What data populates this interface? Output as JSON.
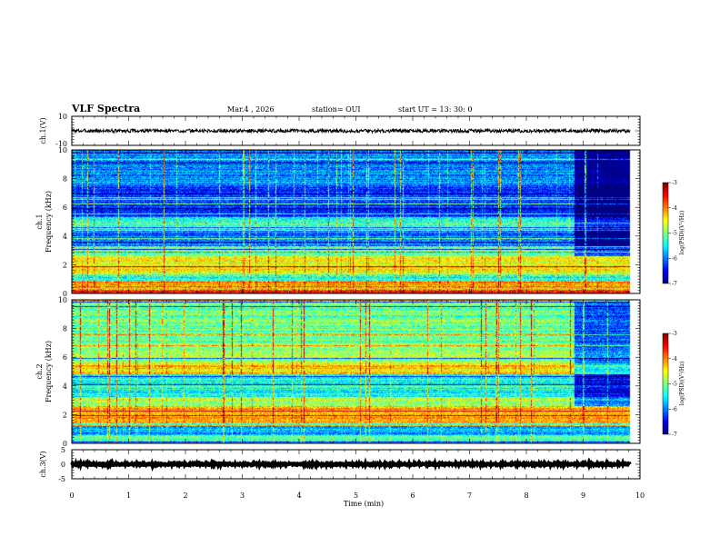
{
  "header": {
    "title": "VLF Spectra",
    "date": "Mar.4 , 2026",
    "station": "station= OUI",
    "start": "start UT = 13: 30: 0"
  },
  "chart_data": [
    {
      "type": "line",
      "name": "ch1-voltage",
      "ylabel": "ch.1(V)",
      "ylim": [
        -10,
        10
      ],
      "yticks": [
        "10",
        "-10"
      ],
      "description_values": {
        "x": [
          0,
          9.83
        ],
        "y_center": 0,
        "y_noise_amplitude": 1.2
      }
    },
    {
      "type": "heatmap",
      "name": "ch1-spectrogram",
      "ylabel_top": "ch.1",
      "ylabel": "Frequency (kHz)",
      "ylim": [
        0,
        10
      ],
      "yticks": [
        "0",
        "2",
        "4",
        "6",
        "8",
        "10"
      ],
      "xlim": [
        0,
        10
      ],
      "colorbar": {
        "label": "log(PSD)(V²/Hz)",
        "ticks": [
          "-3",
          "-4",
          "-5",
          "-6",
          "-7"
        ],
        "range": [
          -7,
          -3
        ]
      },
      "seed": 7,
      "regime_change_min": 8.85,
      "bands_khz": [
        {
          "f0": 0,
          "f1": 0.25,
          "level": -3.6
        },
        {
          "f0": 0.25,
          "f1": 0.9,
          "level": -4.1
        },
        {
          "f0": 0.9,
          "f1": 1.3,
          "level": -5.4
        },
        {
          "f0": 1.3,
          "f1": 2.6,
          "level": -4.5
        },
        {
          "f0": 2.6,
          "f1": 3.3,
          "level": -5.2
        },
        {
          "f0": 3.3,
          "f1": 4.6,
          "level": -6.0
        },
        {
          "f0": 4.6,
          "f1": 5.3,
          "level": -5.3
        },
        {
          "f0": 5.3,
          "f1": 7.5,
          "level": -6.3
        },
        {
          "f0": 7.5,
          "f1": 10.0,
          "level": -6.0
        }
      ]
    },
    {
      "type": "heatmap",
      "name": "ch2-spectrogram",
      "ylabel_top": "ch.2",
      "ylabel": "Frequency (kHz)",
      "ylim": [
        0,
        10
      ],
      "yticks": [
        "0",
        "2",
        "4",
        "6",
        "8",
        "10"
      ],
      "xlim": [
        0,
        10
      ],
      "colorbar": {
        "label": "log(PSD)(V²/Hz)",
        "ticks": [
          "-3",
          "-4",
          "-5",
          "-6",
          "-7"
        ],
        "range": [
          -7,
          -3
        ]
      },
      "seed": 19,
      "regime_change_min": 8.85,
      "bands_khz": [
        {
          "f0": 0,
          "f1": 0.6,
          "level": -5.2
        },
        {
          "f0": 0.6,
          "f1": 1.2,
          "level": -5.8
        },
        {
          "f0": 1.2,
          "f1": 2.6,
          "level": -4.2
        },
        {
          "f0": 2.6,
          "f1": 3.2,
          "level": -4.8
        },
        {
          "f0": 3.2,
          "f1": 4.8,
          "level": -5.4
        },
        {
          "f0": 4.8,
          "f1": 5.6,
          "level": -4.3
        },
        {
          "f0": 5.6,
          "f1": 7.0,
          "level": -4.9
        },
        {
          "f0": 7.0,
          "f1": 10.0,
          "level": -5.1
        }
      ]
    },
    {
      "type": "line",
      "name": "ch3-voltage",
      "ylabel": "ch.3(V)",
      "ylim": [
        -5,
        5
      ],
      "yticks": [
        "5",
        "0",
        "-5"
      ],
      "description_values": {
        "x": [
          0,
          9.83
        ],
        "y_center": 0,
        "y_noise_amplitude": 0.3
      }
    }
  ],
  "xaxis": {
    "label": "Time (min)",
    "ticks": [
      "0",
      "1",
      "2",
      "3",
      "4",
      "5",
      "6",
      "7",
      "8",
      "9",
      "10"
    ],
    "xlim": [
      0,
      10
    ],
    "data_end_min": 9.83
  }
}
